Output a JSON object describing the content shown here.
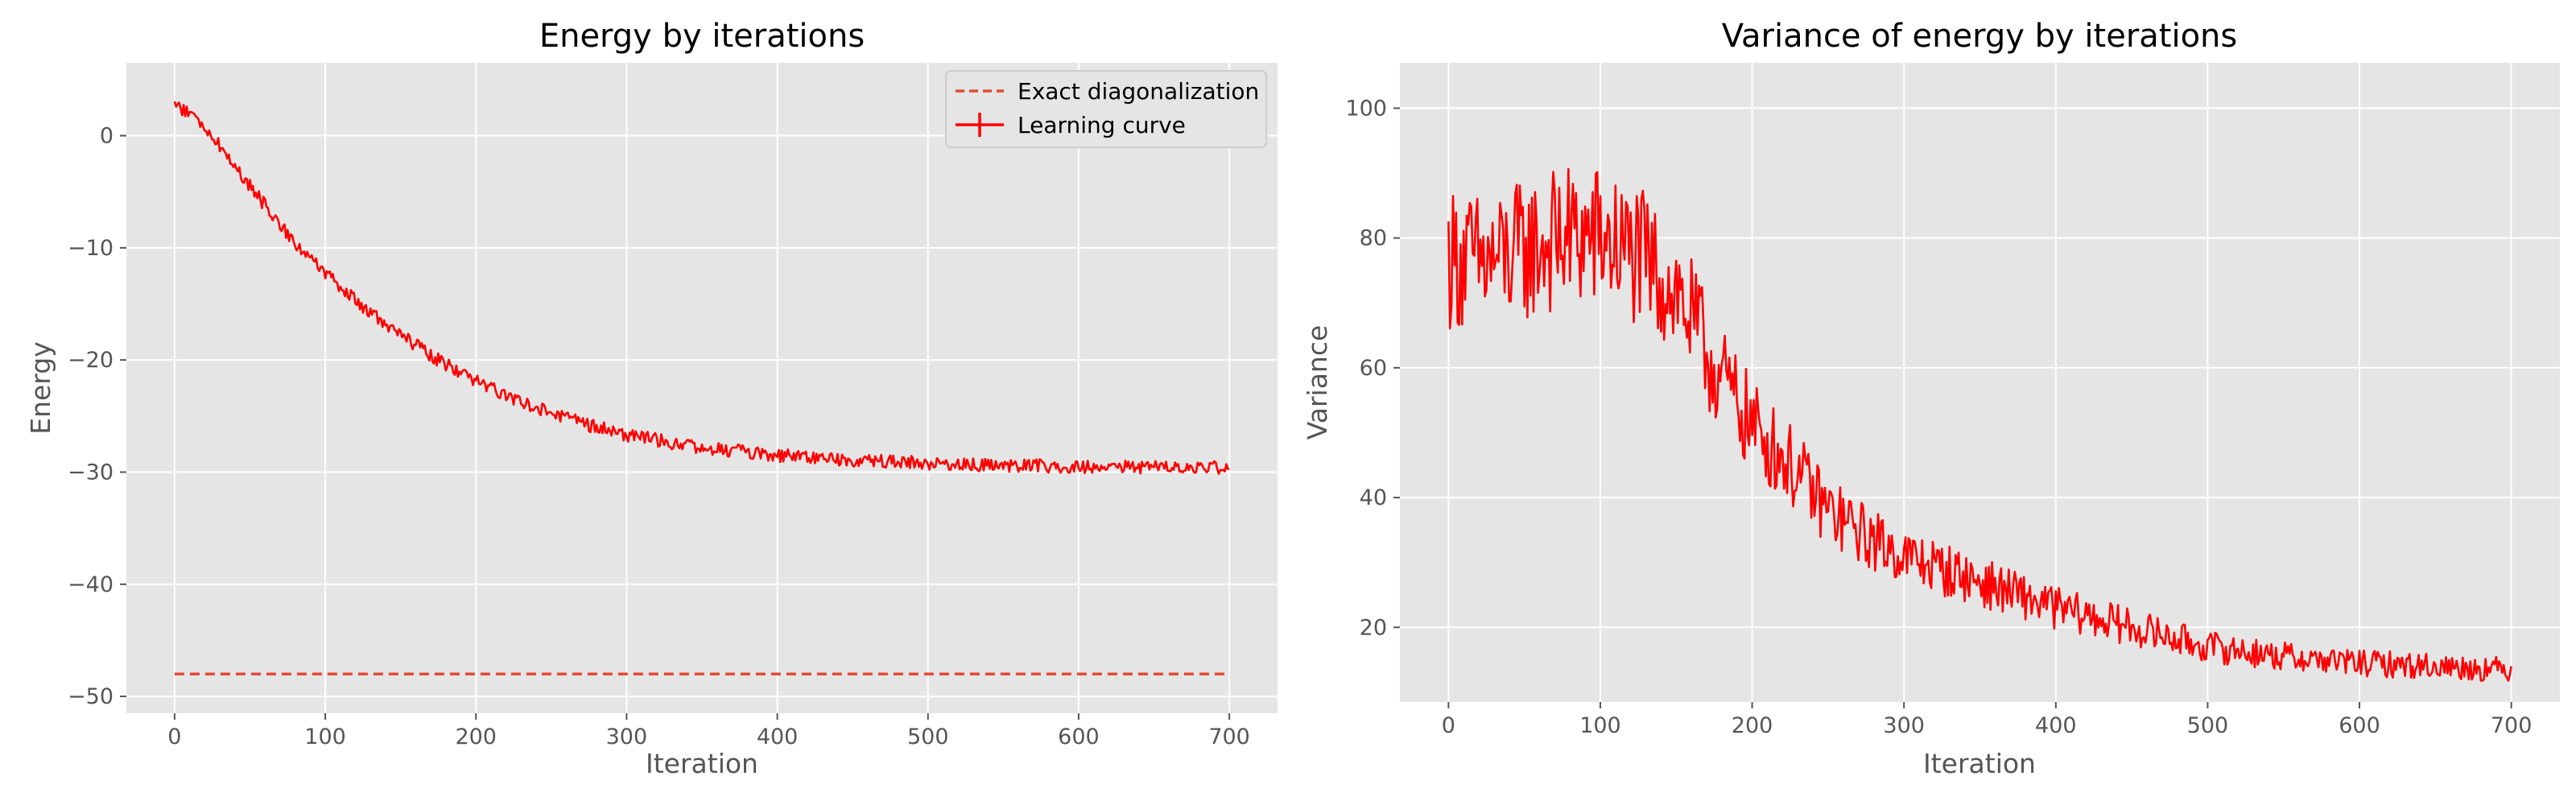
{
  "chart_data": [
    {
      "type": "line",
      "title": "Energy by iterations",
      "xlabel": "Iteration",
      "ylabel": "Energy",
      "xlim": [
        -32,
        732
      ],
      "ylim": [
        -51.5,
        6.5
      ],
      "xticks": [
        0,
        100,
        200,
        300,
        400,
        500,
        600,
        700
      ],
      "yticks": [
        0,
        -10,
        -20,
        -30,
        -40,
        -50
      ],
      "xtick_labels": [
        "0",
        "100",
        "200",
        "300",
        "400",
        "500",
        "600",
        "700"
      ],
      "ytick_labels": [
        "0",
        "−10",
        "−20",
        "−30",
        "−40",
        "−50"
      ],
      "grid": true,
      "legend_position": "top-right",
      "series": [
        {
          "name": "Exact diagonalization",
          "style": "dashed",
          "color": "#E24A33",
          "x": [
            0,
            700
          ],
          "y": [
            -48,
            -48
          ]
        },
        {
          "name": "Learning curve",
          "style": "solid",
          "color": "#FF0000",
          "x": [
            0,
            10,
            25,
            50,
            75,
            100,
            125,
            150,
            175,
            200,
            225,
            250,
            275,
            300,
            350,
            400,
            450,
            500,
            550,
            600,
            650,
            700
          ],
          "y": [
            2.8,
            2.0,
            0.0,
            -4.5,
            -8.8,
            -12.3,
            -15.3,
            -17.8,
            -20.0,
            -21.9,
            -23.4,
            -24.7,
            -25.8,
            -26.7,
            -27.8,
            -28.5,
            -28.9,
            -29.2,
            -29.4,
            -29.5,
            -29.6,
            -29.6
          ],
          "noise_amplitude": 0.6
        }
      ]
    },
    {
      "type": "line",
      "title": "Variance of energy by iterations",
      "xlabel": "Iteration",
      "ylabel": "Variance",
      "xlim": [
        -32,
        732
      ],
      "ylim": [
        8.5,
        107
      ],
      "xticks": [
        0,
        100,
        200,
        300,
        400,
        500,
        600,
        700
      ],
      "yticks": [
        20,
        40,
        60,
        80,
        100
      ],
      "xtick_labels": [
        "0",
        "100",
        "200",
        "300",
        "400",
        "500",
        "600",
        "700"
      ],
      "ytick_labels": [
        "20",
        "40",
        "60",
        "80",
        "100"
      ],
      "grid": true,
      "series": [
        {
          "name": "",
          "style": "solid",
          "color": "#FF0000",
          "x": [
            0,
            25,
            50,
            75,
            100,
            125,
            150,
            175,
            200,
            225,
            250,
            275,
            300,
            350,
            400,
            450,
            500,
            550,
            600,
            650,
            700
          ],
          "y": [
            77,
            76,
            78,
            80,
            80,
            77,
            72,
            60,
            51,
            45,
            38,
            34,
            31,
            27,
            23,
            20,
            17,
            15.5,
            14.5,
            14,
            13.5
          ],
          "noise_amplitude": 0.11
        }
      ]
    }
  ]
}
